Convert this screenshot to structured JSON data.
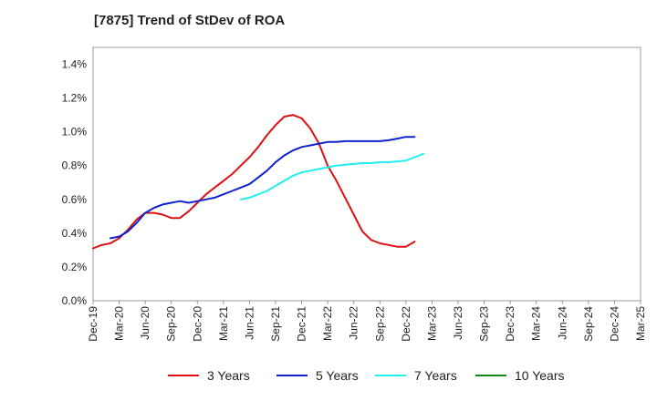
{
  "chart_data": {
    "type": "line",
    "title": "[7875]  Trend of StDev of ROA",
    "xlabel": "",
    "ylabel": "",
    "x_ticks": [
      "Dec-19",
      "Mar-20",
      "Jun-20",
      "Sep-20",
      "Dec-20",
      "Mar-21",
      "Jun-21",
      "Sep-21",
      "Dec-21",
      "Mar-22",
      "Jun-22",
      "Sep-22",
      "Dec-22",
      "Mar-23",
      "Jun-23",
      "Sep-23",
      "Dec-23",
      "Mar-24",
      "Jun-24",
      "Sep-24",
      "Dec-24",
      "Mar-25"
    ],
    "y_ticks": [
      "0.0%",
      "0.2%",
      "0.4%",
      "0.6%",
      "0.8%",
      "1.0%",
      "1.2%",
      "1.4%"
    ],
    "ylim": [
      0,
      1.5
    ],
    "y_unit": "%",
    "grid": true,
    "legend_position": "bottom",
    "series": [
      {
        "name": "3 Years",
        "color": "#dd1111",
        "start_index": 0,
        "values": [
          0.31,
          0.33,
          0.34,
          0.37,
          0.42,
          0.48,
          0.52,
          0.52,
          0.51,
          0.49,
          0.49,
          0.53,
          0.58,
          0.63,
          0.67,
          0.71,
          0.75,
          0.8,
          0.85,
          0.91,
          0.98,
          1.04,
          1.09,
          1.1,
          1.08,
          1.02,
          0.93,
          0.8,
          0.71,
          0.61,
          0.51,
          0.41,
          0.36,
          0.34,
          0.33,
          0.32,
          0.32,
          0.35
        ]
      },
      {
        "name": "5 Years",
        "color": "#1122cc",
        "start_index": 2,
        "values": [
          0.37,
          0.38,
          0.41,
          0.46,
          0.52,
          0.55,
          0.57,
          0.58,
          0.59,
          0.58,
          0.59,
          0.6,
          0.61,
          0.63,
          0.65,
          0.67,
          0.69,
          0.73,
          0.77,
          0.82,
          0.86,
          0.89,
          0.91,
          0.92,
          0.93,
          0.94,
          0.94,
          0.945,
          0.945,
          0.945,
          0.945,
          0.945,
          0.95,
          0.96,
          0.97,
          0.97
        ]
      },
      {
        "name": "7 Years",
        "color": "#22eeee",
        "start_index": 17,
        "values": [
          0.6,
          0.61,
          0.63,
          0.65,
          0.68,
          0.71,
          0.74,
          0.76,
          0.77,
          0.78,
          0.79,
          0.8,
          0.805,
          0.81,
          0.815,
          0.815,
          0.82,
          0.82,
          0.825,
          0.83,
          0.85,
          0.87
        ]
      },
      {
        "name": "10 Years",
        "color": "#118811",
        "start_index": 38,
        "values": []
      }
    ]
  }
}
